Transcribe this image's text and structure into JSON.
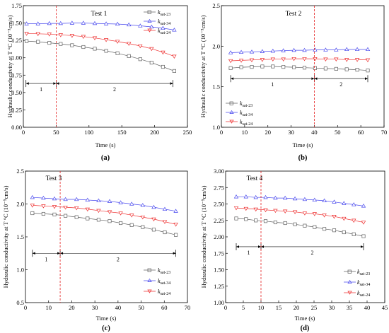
{
  "charts": [
    {
      "id": "a",
      "caption": "(a)",
      "title": "Test 1",
      "xlabel": "Time (s)",
      "ylabel": "Hydraulic conductivity at T °C (10⁻⁵cm/s)",
      "xlim": [
        0,
        250
      ],
      "ylim": [
        0,
        1.75
      ],
      "xticks": [
        0,
        50,
        100,
        150,
        200,
        250
      ],
      "yticks": [
        0.0,
        0.25,
        0.5,
        0.75,
        1.0,
        1.25,
        1.5,
        1.75
      ],
      "ydec": 2,
      "series_x": [
        5,
        230
      ],
      "series": [
        {
          "key": "k23",
          "shape": "square",
          "color": "#606060",
          "y": [
            1.24,
            1.23,
            1.215,
            1.2,
            1.18,
            1.155,
            1.13,
            1.1,
            1.065,
            1.025,
            0.98,
            0.93,
            0.87,
            0.81
          ]
        },
        {
          "key": "k34",
          "shape": "tri-up",
          "color": "#4a4aee",
          "y": [
            1.49,
            1.49,
            1.495,
            1.495,
            1.5,
            1.5,
            1.495,
            1.49,
            1.485,
            1.475,
            1.46,
            1.445,
            1.425,
            1.4
          ]
        },
        {
          "key": "k24",
          "shape": "tri-down",
          "color": "#ee3030",
          "y": [
            1.35,
            1.345,
            1.34,
            1.33,
            1.32,
            1.305,
            1.285,
            1.26,
            1.235,
            1.205,
            1.17,
            1.13,
            1.08,
            1.02
          ]
        }
      ],
      "dashed_x": 50,
      "interval": {
        "y": 0.63,
        "x_start": 4,
        "x_mid": 50,
        "x_end": 228,
        "label1": "1",
        "label2": "2"
      },
      "legend_pos": "top-right",
      "legend": {
        "k23_main": "k",
        "k23_sub": "sat-23",
        "k34_main": "k",
        "k34_sub": "sat-34",
        "k24_main": "k",
        "k24_sub": "sat-24"
      }
    },
    {
      "id": "b",
      "caption": "(b)",
      "title": "Test 2",
      "xlabel": "Time (s)",
      "ylabel": "Hydraulic conductivity at T °C (10⁻⁵cm/s)",
      "xlim": [
        0,
        70
      ],
      "ylim": [
        1.0,
        2.5
      ],
      "xticks": [
        0,
        10,
        20,
        30,
        40,
        50,
        60,
        70
      ],
      "yticks": [
        1.0,
        1.5,
        2.0,
        2.5
      ],
      "ydec": 1,
      "series_x": [
        4,
        63
      ],
      "series": [
        {
          "key": "k23",
          "shape": "square",
          "color": "#606060",
          "y": [
            1.73,
            1.74,
            1.745,
            1.75,
            1.75,
            1.745,
            1.74,
            1.735,
            1.73,
            1.725,
            1.72,
            1.715,
            1.71,
            1.7
          ]
        },
        {
          "key": "k34",
          "shape": "tri-up",
          "color": "#4a4aee",
          "y": [
            1.92,
            1.925,
            1.93,
            1.935,
            1.94,
            1.945,
            1.95,
            1.95,
            1.955,
            1.955,
            1.955,
            1.96,
            1.96,
            1.96
          ]
        },
        {
          "key": "k24",
          "shape": "tri-down",
          "color": "#ee3030",
          "y": [
            1.82,
            1.825,
            1.83,
            1.835,
            1.84,
            1.84,
            1.845,
            1.845,
            1.845,
            1.84,
            1.84,
            1.835,
            1.835,
            1.83
          ]
        }
      ],
      "dashed_x": 40,
      "interval": {
        "y": 1.6,
        "x_start": 4,
        "x_mid": 40,
        "x_end": 63,
        "label1": "1",
        "label2": "2"
      },
      "legend_pos": "bottom-left",
      "legend": {
        "k23_main": "k",
        "k23_sub": "sat-23",
        "k34_main": "k",
        "k34_sub": "sat-34",
        "k24_main": "k",
        "k24_sub": "sat-24"
      }
    },
    {
      "id": "c",
      "caption": "(c)",
      "title": "Test 3",
      "xlabel": "Time (s)",
      "ylabel": "Hydraulic conductivity at T °C (10⁻⁵cm/s)",
      "xlim": [
        0,
        70
      ],
      "ylim": [
        0.5,
        2.5
      ],
      "xticks": [
        0,
        10,
        20,
        30,
        40,
        50,
        60,
        70
      ],
      "yticks": [
        0.5,
        1.0,
        1.5,
        2.0,
        2.5
      ],
      "ydec": 1,
      "series_x": [
        3,
        65
      ],
      "series": [
        {
          "key": "k23",
          "shape": "square",
          "color": "#606060",
          "y": [
            1.86,
            1.85,
            1.84,
            1.82,
            1.8,
            1.78,
            1.76,
            1.74,
            1.71,
            1.68,
            1.65,
            1.61,
            1.57,
            1.53
          ]
        },
        {
          "key": "k34",
          "shape": "tri-up",
          "color": "#4a4aee",
          "y": [
            2.1,
            2.09,
            2.08,
            2.07,
            2.07,
            2.06,
            2.05,
            2.04,
            2.02,
            2.0,
            1.98,
            1.95,
            1.92,
            1.89
          ]
        },
        {
          "key": "k24",
          "shape": "tri-down",
          "color": "#ee3030",
          "y": [
            1.98,
            1.97,
            1.96,
            1.95,
            1.94,
            1.92,
            1.9,
            1.88,
            1.86,
            1.83,
            1.8,
            1.77,
            1.73,
            1.69
          ]
        }
      ],
      "dashed_x": 15,
      "interval": {
        "y": 1.25,
        "x_start": 3,
        "x_mid": 15,
        "x_end": 65,
        "label1": "1",
        "label2": "2"
      },
      "legend_pos": "bottom-right",
      "legend": {
        "k23_main": "k",
        "k23_sub": "sat-23",
        "k34_main": "k",
        "k34_sub": "sat-34",
        "k24_main": "k",
        "k24_sub": "sat-24"
      }
    },
    {
      "id": "d",
      "caption": "(d)",
      "title": "Test 4",
      "xlabel": "Time (s)",
      "ylabel": "Hydraulic conductivity at T °C (10⁻⁵cm/s)",
      "xlim": [
        0,
        45
      ],
      "ylim": [
        1.0,
        3.0
      ],
      "xticks": [
        0,
        5,
        10,
        15,
        20,
        25,
        30,
        35,
        40,
        45
      ],
      "yticks": [
        1.0,
        1.25,
        1.5,
        1.75,
        2.0,
        2.25,
        2.5,
        2.75,
        3.0
      ],
      "ydec": 2,
      "series_x": [
        3,
        39
      ],
      "series": [
        {
          "key": "k23",
          "shape": "square",
          "color": "#606060",
          "y": [
            2.28,
            2.27,
            2.25,
            2.24,
            2.22,
            2.21,
            2.19,
            2.17,
            2.15,
            2.12,
            2.1,
            2.07,
            2.04,
            2.01
          ]
        },
        {
          "key": "k34",
          "shape": "tri-up",
          "color": "#4a4aee",
          "y": [
            2.61,
            2.61,
            2.6,
            2.6,
            2.59,
            2.59,
            2.58,
            2.57,
            2.56,
            2.55,
            2.53,
            2.51,
            2.49,
            2.47
          ]
        },
        {
          "key": "k24",
          "shape": "tri-down",
          "color": "#ee3030",
          "y": [
            2.44,
            2.43,
            2.42,
            2.41,
            2.4,
            2.39,
            2.38,
            2.36,
            2.35,
            2.33,
            2.31,
            2.28,
            2.25,
            2.22
          ]
        }
      ],
      "dashed_x": 10,
      "interval": {
        "y": 1.85,
        "x_start": 3,
        "x_mid": 10,
        "x_end": 39,
        "label1": "1",
        "label2": "2"
      },
      "legend_pos": "bottom-right",
      "legend": {
        "k23_main": "k",
        "k23_sub": "sat-23",
        "k34_main": "k",
        "k34_sub": "sat-34",
        "k24_main": "k",
        "k24_sub": "sat-24"
      }
    }
  ]
}
